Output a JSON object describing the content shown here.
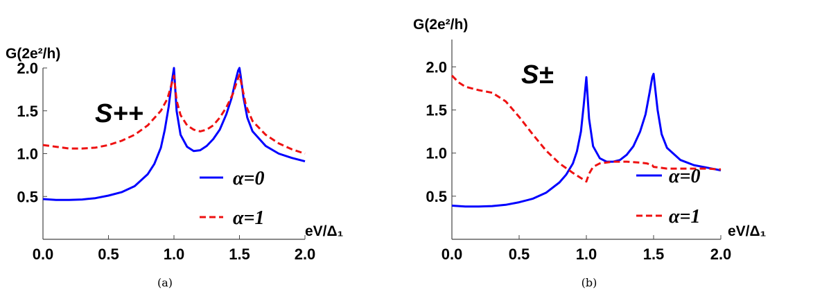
{
  "chart_data": [
    {
      "type": "line",
      "caption": "(a)",
      "ylabel": "G(2e²/h)",
      "xlabel": "eV/Δ₁",
      "annotation": "S++",
      "xlim": [
        0,
        2
      ],
      "ylim": [
        0,
        2
      ],
      "xticks": [
        "0.0",
        "0.5",
        "1.0",
        "1.5",
        "2.0"
      ],
      "yticks": [
        "0.5",
        "1.0",
        "1.5",
        "2.0"
      ],
      "legend_position": "lower-right",
      "series": [
        {
          "name": "α=0",
          "color": "#0000ff",
          "dash": "solid",
          "x": [
            0.0,
            0.1,
            0.2,
            0.3,
            0.4,
            0.5,
            0.6,
            0.7,
            0.8,
            0.85,
            0.9,
            0.93,
            0.96,
            0.98,
            1.0,
            1.02,
            1.05,
            1.1,
            1.15,
            1.2,
            1.25,
            1.3,
            1.35,
            1.4,
            1.44,
            1.47,
            1.49,
            1.5,
            1.51,
            1.53,
            1.56,
            1.6,
            1.7,
            1.8,
            1.9,
            2.0
          ],
          "y": [
            0.47,
            0.46,
            0.46,
            0.465,
            0.48,
            0.51,
            0.55,
            0.62,
            0.76,
            0.88,
            1.07,
            1.28,
            1.55,
            1.8,
            2.0,
            1.5,
            1.22,
            1.08,
            1.03,
            1.04,
            1.09,
            1.17,
            1.28,
            1.46,
            1.65,
            1.85,
            1.97,
            2.0,
            1.9,
            1.66,
            1.42,
            1.26,
            1.09,
            1.0,
            0.95,
            0.91
          ]
        },
        {
          "name": "α=1",
          "color": "#ee1111",
          "dash": "dashed",
          "x": [
            0.0,
            0.1,
            0.2,
            0.3,
            0.4,
            0.5,
            0.6,
            0.7,
            0.8,
            0.9,
            0.95,
            0.98,
            1.0,
            1.02,
            1.05,
            1.1,
            1.15,
            1.2,
            1.25,
            1.3,
            1.35,
            1.4,
            1.45,
            1.48,
            1.5,
            1.52,
            1.55,
            1.6,
            1.7,
            1.8,
            1.9,
            2.0
          ],
          "y": [
            1.1,
            1.08,
            1.06,
            1.06,
            1.07,
            1.1,
            1.15,
            1.22,
            1.33,
            1.5,
            1.64,
            1.8,
            1.91,
            1.62,
            1.45,
            1.33,
            1.28,
            1.26,
            1.28,
            1.33,
            1.42,
            1.54,
            1.7,
            1.84,
            1.92,
            1.78,
            1.56,
            1.38,
            1.22,
            1.12,
            1.05,
            1.0
          ]
        }
      ]
    },
    {
      "type": "line",
      "caption": "(b)",
      "ylabel": "G(2e²/h)",
      "xlabel": "eV/Δ₁",
      "annotation": "S±",
      "xlim": [
        0,
        2
      ],
      "ylim": [
        0,
        2.1
      ],
      "xticks": [
        "0.0",
        "0.5",
        "1.0",
        "1.5",
        "2.0"
      ],
      "yticks": [
        "0.5",
        "1.0",
        "1.5",
        "2.0"
      ],
      "legend_position": "lower-right",
      "series": [
        {
          "name": "α=0",
          "color": "#0000ff",
          "dash": "solid",
          "x": [
            0.0,
            0.1,
            0.2,
            0.3,
            0.4,
            0.5,
            0.6,
            0.7,
            0.8,
            0.85,
            0.9,
            0.93,
            0.96,
            0.98,
            1.0,
            1.02,
            1.05,
            1.1,
            1.15,
            1.2,
            1.25,
            1.3,
            1.35,
            1.4,
            1.44,
            1.47,
            1.49,
            1.5,
            1.51,
            1.53,
            1.56,
            1.6,
            1.7,
            1.8,
            1.9,
            2.0
          ],
          "y": [
            0.39,
            0.38,
            0.38,
            0.385,
            0.4,
            0.43,
            0.47,
            0.54,
            0.66,
            0.75,
            0.88,
            1.02,
            1.25,
            1.55,
            1.88,
            1.4,
            1.08,
            0.94,
            0.9,
            0.9,
            0.92,
            0.98,
            1.08,
            1.25,
            1.45,
            1.7,
            1.88,
            1.92,
            1.78,
            1.5,
            1.22,
            1.06,
            0.92,
            0.86,
            0.83,
            0.8
          ]
        },
        {
          "name": "α=1",
          "color": "#ee1111",
          "dash": "dashed",
          "x": [
            0.0,
            0.05,
            0.1,
            0.2,
            0.3,
            0.4,
            0.5,
            0.6,
            0.7,
            0.8,
            0.9,
            0.95,
            0.99,
            1.0,
            1.02,
            1.05,
            1.1,
            1.2,
            1.3,
            1.4,
            1.45,
            1.49,
            1.5,
            1.55,
            1.6,
            1.7,
            1.8,
            1.9,
            2.0
          ],
          "y": [
            1.9,
            1.82,
            1.77,
            1.73,
            1.7,
            1.6,
            1.42,
            1.22,
            1.03,
            0.88,
            0.77,
            0.72,
            0.68,
            0.67,
            0.76,
            0.84,
            0.88,
            0.9,
            0.9,
            0.89,
            0.88,
            0.86,
            0.84,
            0.83,
            0.82,
            0.82,
            0.82,
            0.82,
            0.81
          ]
        }
      ]
    }
  ]
}
